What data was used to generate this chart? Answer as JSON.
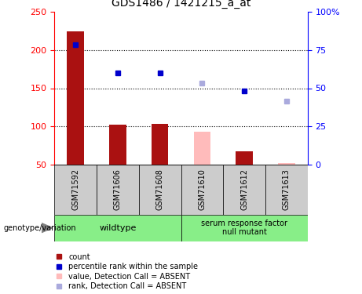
{
  "title": "GDS1486 / 1421215_a_at",
  "samples": [
    "GSM71592",
    "GSM71606",
    "GSM71608",
    "GSM71610",
    "GSM71612",
    "GSM71613"
  ],
  "bar_values": [
    224,
    102,
    103,
    null,
    67,
    null
  ],
  "bar_colors_present": "#aa1111",
  "bar_colors_absent": "#ffbbbb",
  "bar_absent_values": [
    null,
    null,
    null,
    93,
    null,
    52
  ],
  "rank_present": [
    207,
    170,
    170,
    null,
    146,
    null
  ],
  "rank_absent": [
    null,
    null,
    null,
    157,
    null,
    133
  ],
  "rank_present_color": "#0000cc",
  "rank_absent_color": "#aaaadd",
  "ylim_left": [
    50,
    250
  ],
  "ylim_right": [
    0,
    100
  ],
  "yticks_left": [
    50,
    100,
    150,
    200,
    250
  ],
  "ytick_labels_right": [
    "0",
    "25",
    "50",
    "75",
    "100%"
  ],
  "hlines": [
    100,
    150,
    200
  ],
  "wildtype_label": "wildtype",
  "mutant_label": "serum response factor\nnull mutant",
  "genotype_label": "genotype/variation",
  "legend_items": [
    {
      "label": "count",
      "color": "#aa1111"
    },
    {
      "label": "percentile rank within the sample",
      "color": "#0000cc"
    },
    {
      "label": "value, Detection Call = ABSENT",
      "color": "#ffbbbb"
    },
    {
      "label": "rank, Detection Call = ABSENT",
      "color": "#aaaadd"
    }
  ],
  "sample_box_color": "#cccccc",
  "wildtype_box_color": "#88ee88",
  "mutant_box_color": "#88ee88"
}
